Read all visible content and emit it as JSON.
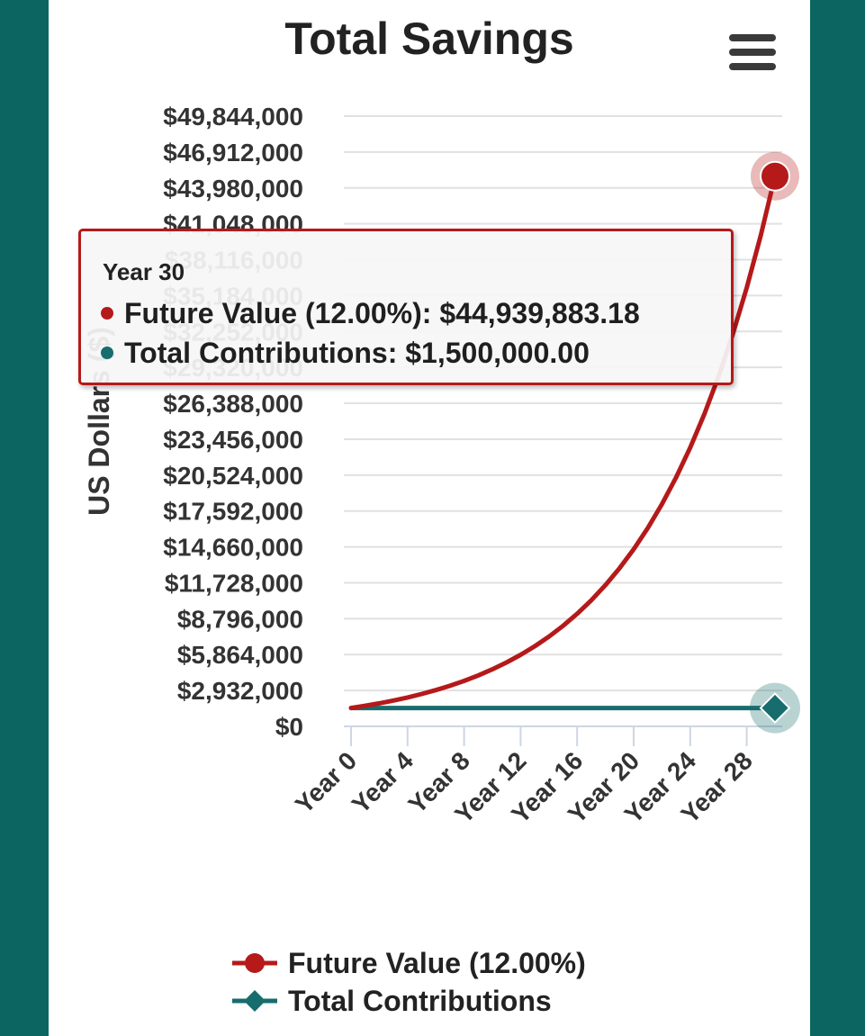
{
  "colors": {
    "page_bg": "#0c6561",
    "future_value": "#b5191a",
    "contributions": "#176c6e"
  },
  "chart": {
    "title": "Total Savings",
    "menu_icon": "hamburger-menu-icon"
  },
  "chart_data": {
    "type": "line",
    "title": "Total Savings",
    "ylabel": "US Dollars ($)",
    "xlabel": "",
    "ylim": [
      0,
      49844000
    ],
    "xlim": [
      0,
      30
    ],
    "y_ticks": [
      "$49,844,000",
      "$46,912,000",
      "$43,980,000",
      "$41,048,000",
      "$38,116,000",
      "$35,184,000",
      "$32,252,000",
      "$29,320,000",
      "$26,388,000",
      "$23,456,000",
      "$20,524,000",
      "$17,592,000",
      "$14,660,000",
      "$11,728,000",
      "$8,796,000",
      "$5,864,000",
      "$2,932,000",
      "$0"
    ],
    "x_ticks": [
      "Year 0",
      "Year 4",
      "Year 8",
      "Year 12",
      "Year 16",
      "Year 20",
      "Year 24",
      "Year 28"
    ],
    "x_tick_values": [
      0,
      4,
      8,
      12,
      16,
      20,
      24,
      28
    ],
    "grid": true,
    "legend_position": "bottom",
    "series": [
      {
        "name": "Future Value (12.00%)",
        "marker": "circle",
        "x": [
          0,
          1,
          2,
          3,
          4,
          5,
          6,
          7,
          8,
          9,
          10,
          11,
          12,
          13,
          14,
          15,
          16,
          17,
          18,
          19,
          20,
          21,
          22,
          23,
          24,
          25,
          26,
          27,
          28,
          29,
          30
        ],
        "values": [
          1500000,
          1680000,
          1881600,
          2107392,
          2360279,
          2643513,
          2960735,
          3316023,
          3713946,
          4159620,
          4658774,
          5217827,
          5843966,
          6545242,
          7330671,
          8210352,
          9195594,
          10299065,
          11534953,
          12919147,
          14469445,
          16205778,
          18150472,
          20328528,
          22767951,
          25500105,
          28560118,
          31987332,
          35825812,
          40124910,
          44939883.18
        ]
      },
      {
        "name": "Total Contributions",
        "marker": "diamond",
        "x": [
          0,
          30
        ],
        "values": [
          1500000,
          1500000
        ]
      }
    ],
    "tooltip": {
      "header": "Year 30",
      "rows": [
        {
          "series": "Future Value (12.00%)",
          "text": "Future Value (12.00%): $44,939,883.18"
        },
        {
          "series": "Total Contributions",
          "text": "Total Contributions: $1,500,000.00"
        }
      ]
    }
  }
}
